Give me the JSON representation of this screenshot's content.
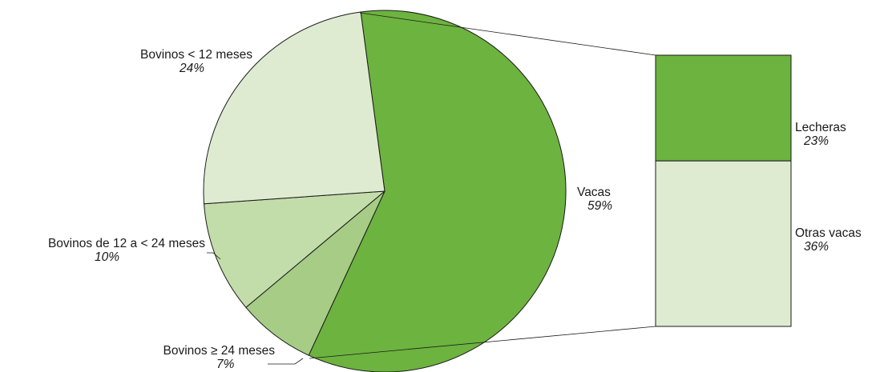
{
  "chart_data": {
    "type": "pie",
    "title": "",
    "slices": [
      {
        "name": "Vacas",
        "value": 59,
        "value_label": "59%",
        "color": "#6db33f"
      },
      {
        "name": "Bovinos ≥ 24 meses",
        "value": 7,
        "value_label": "7%",
        "color": "#a6cc86"
      },
      {
        "name": "Bovinos de 12 a < 24 meses",
        "value": 10,
        "value_label": "10%",
        "color": "#c3ddaa"
      },
      {
        "name": "Bovinos < 12 meses",
        "value": 24,
        "value_label": "24%",
        "color": "#deebd1"
      }
    ],
    "breakdown": {
      "of": "Vacas",
      "segments": [
        {
          "name": "Lecheras",
          "value": 23,
          "value_label": "23%",
          "color": "#6db33f"
        },
        {
          "name": "Otras vacas",
          "value": 36,
          "value_label": "36%",
          "color": "#deebd1"
        }
      ]
    }
  }
}
